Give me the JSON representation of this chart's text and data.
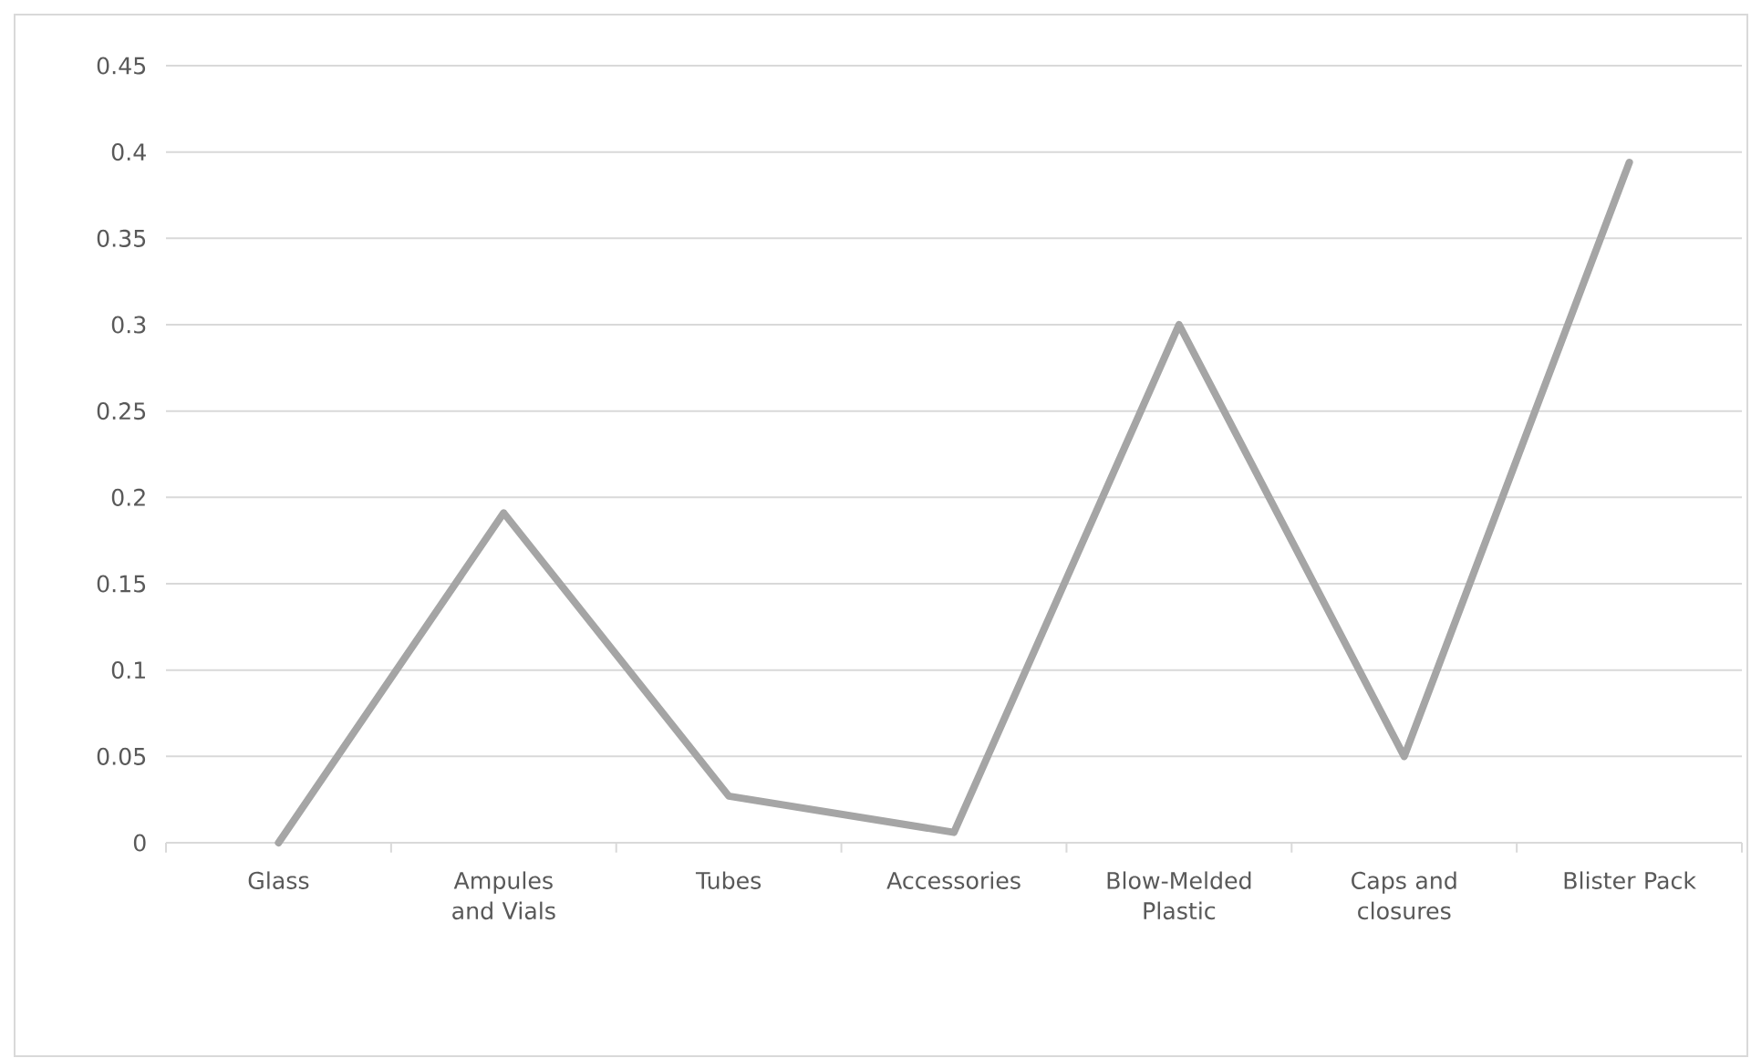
{
  "chart_data": {
    "type": "line",
    "categories": [
      "Glass",
      "Ampules and Vials",
      "Tubes",
      "Accessories",
      "Blow-Melded Plastic",
      "Caps and closures",
      "Blister Pack"
    ],
    "series": [
      {
        "color": "#a5a5a5",
        "values": [
          0,
          0.191,
          0.027,
          0.006,
          0.3,
          0.05,
          0.394
        ]
      }
    ],
    "ylim": [
      0,
      0.45
    ],
    "yticks": [
      0,
      0.05,
      0.1,
      0.15,
      0.2,
      0.25,
      0.3,
      0.35,
      0.4,
      0.45
    ],
    "grid": "y",
    "marker": "none",
    "line_style": "solid"
  }
}
